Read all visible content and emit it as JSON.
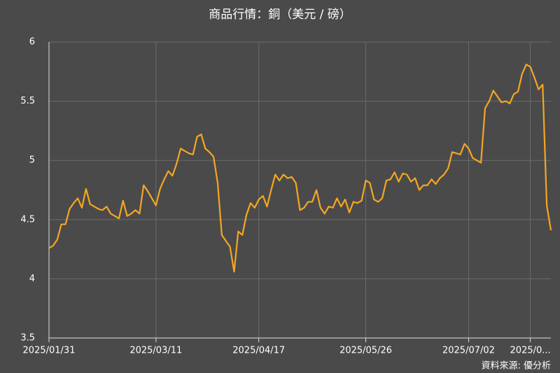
{
  "chart_data": {
    "type": "line",
    "title": "商品行情：銅（美元 / 磅）",
    "source": "資料來源: 優分析",
    "categories": [
      "2025/01/31",
      null,
      null,
      null,
      null,
      null,
      null,
      null,
      null,
      null,
      null,
      null,
      null,
      null,
      null,
      null,
      null,
      null,
      null,
      null,
      null,
      null,
      null,
      null,
      null,
      null,
      "2025/03/11",
      null,
      null,
      null,
      null,
      null,
      null,
      null,
      null,
      null,
      null,
      null,
      null,
      null,
      null,
      null,
      null,
      null,
      null,
      null,
      null,
      null,
      null,
      null,
      null,
      "2025/04/17",
      null,
      null,
      null,
      null,
      null,
      null,
      null,
      null,
      null,
      null,
      null,
      null,
      null,
      null,
      null,
      null,
      null,
      null,
      null,
      null,
      null,
      null,
      null,
      null,
      null,
      "2025/05/26",
      null,
      null,
      null,
      null,
      null,
      null,
      null,
      null,
      null,
      null,
      null,
      null,
      null,
      null,
      null,
      null,
      null,
      null,
      null,
      null,
      null,
      null,
      null,
      null,
      "2025/07/02",
      null,
      null,
      null,
      null,
      null,
      null,
      null,
      null,
      null,
      null,
      null,
      null,
      null,
      null,
      "2025/0...",
      null,
      null,
      null,
      null,
      null
    ],
    "series": [
      {
        "color": "#f5a623",
        "values": [
          4.26,
          4.28,
          4.33,
          4.46,
          4.46,
          4.59,
          4.64,
          4.68,
          4.6,
          4.76,
          4.63,
          4.61,
          4.59,
          4.58,
          4.61,
          4.55,
          4.53,
          4.51,
          4.66,
          4.53,
          4.55,
          4.58,
          4.55,
          4.79,
          4.74,
          4.68,
          4.62,
          4.76,
          4.84,
          4.91,
          4.87,
          4.97,
          5.1,
          5.08,
          5.06,
          5.05,
          5.2,
          5.22,
          5.1,
          5.07,
          5.03,
          4.81,
          4.37,
          4.32,
          4.27,
          4.06,
          4.4,
          4.37,
          4.54,
          4.64,
          4.6,
          4.67,
          4.7,
          4.61,
          4.75,
          4.88,
          4.83,
          4.88,
          4.85,
          4.86,
          4.81,
          4.58,
          4.6,
          4.65,
          4.65,
          4.75,
          4.6,
          4.55,
          4.61,
          4.6,
          4.68,
          4.61,
          4.67,
          4.56,
          4.65,
          4.64,
          4.66,
          4.83,
          4.81,
          4.67,
          4.65,
          4.68,
          4.83,
          4.84,
          4.9,
          4.82,
          4.89,
          4.88,
          4.82,
          4.85,
          4.75,
          4.79,
          4.79,
          4.84,
          4.8,
          4.85,
          4.88,
          4.93,
          5.07,
          5.06,
          5.05,
          5.14,
          5.1,
          5.02,
          5.0,
          4.98,
          5.44,
          5.5,
          5.59,
          5.54,
          5.49,
          5.5,
          5.48,
          5.56,
          5.58,
          5.73,
          5.81,
          5.79,
          5.7,
          5.6,
          5.64,
          4.62,
          4.41
        ]
      }
    ],
    "ylim": [
      3.5,
      6
    ],
    "yticks": [
      3.5,
      4,
      4.5,
      5,
      5.5,
      6
    ],
    "grid": true
  }
}
